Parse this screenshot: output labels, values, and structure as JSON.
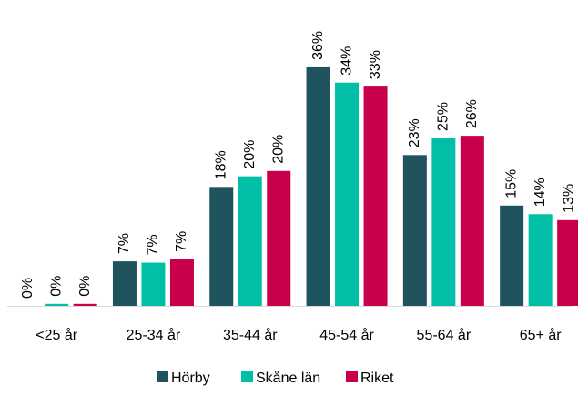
{
  "chart_data": {
    "type": "bar",
    "categories": [
      "<25 år",
      "25-34 år",
      "35-44 år",
      "45-54 år",
      "55-64 år",
      "65+ år"
    ],
    "series": [
      {
        "name": "Hörby",
        "color": "#1f545e",
        "values": [
          0,
          6.7,
          17.9,
          35.9,
          22.7,
          15.1
        ],
        "value_labels": [
          "0%",
          "7%",
          "18%",
          "36%",
          "23%",
          "15%"
        ]
      },
      {
        "name": "Skåne län",
        "color": "#00bfa6",
        "values": [
          0.3,
          6.5,
          19.5,
          33.6,
          25.2,
          13.8
        ],
        "value_labels": [
          "0%",
          "7%",
          "20%",
          "34%",
          "25%",
          "14%"
        ]
      },
      {
        "name": "Riket",
        "color": "#c8004b",
        "values": [
          0.3,
          7.0,
          20.3,
          33.0,
          25.6,
          12.9
        ],
        "value_labels": [
          "0%",
          "7%",
          "20%",
          "33%",
          "26%",
          "13%"
        ]
      }
    ]
  }
}
